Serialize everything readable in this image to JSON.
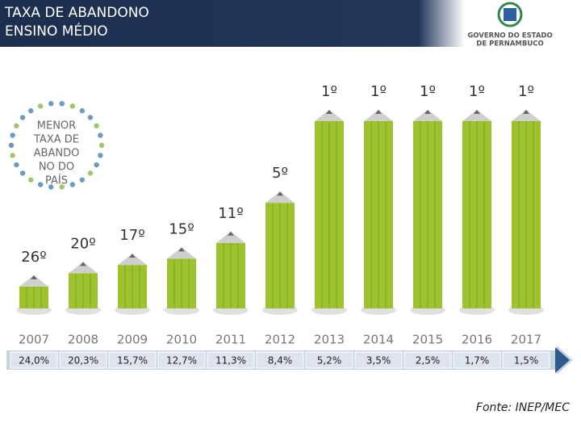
{
  "chart_data": {
    "type": "bar",
    "title": "TAXA DE ABANDONO",
    "subtitle": "ENSINO MÉDIO",
    "logo": [
      "GOVERNO DO ESTADO",
      "DE PERNAMBUCO"
    ],
    "badge": [
      "MENOR",
      "TAXA DE",
      "ABANDO",
      "NO DO",
      "PAÍS"
    ],
    "categories": [
      "2007",
      "2008",
      "2009",
      "2010",
      "2011",
      "2012",
      "2013",
      "2014",
      "2015",
      "2016",
      "2017"
    ],
    "values": [
      26,
      20,
      17,
      15,
      11,
      5,
      1,
      1,
      1,
      1,
      1
    ],
    "value_labels": [
      "26º",
      "20º",
      "17º",
      "15º",
      "11º",
      "5º",
      "1º",
      "1º",
      "1º",
      "1º",
      "1º"
    ],
    "rates": [
      24.0,
      20.3,
      15.7,
      12.7,
      11.3,
      8.4,
      5.2,
      3.5,
      2.5,
      1.7,
      1.5
    ],
    "rate_labels": [
      "24,0%",
      "20,3%",
      "15,7%",
      "12,7%",
      "11,3%",
      "8,4%",
      "5,2%",
      "3,5%",
      "2,5%",
      "1,7%",
      "1,5%"
    ],
    "color": "#9cc22e",
    "log_scale": true,
    "ylim": [
      1,
      40
    ],
    "source": "Fonte: INEP/MEC"
  }
}
